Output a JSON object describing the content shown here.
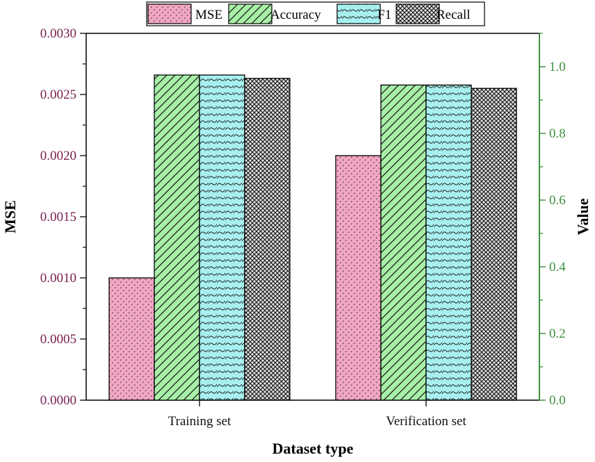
{
  "chart_data": {
    "type": "bar",
    "title": "",
    "xlabel": "Dataset type",
    "ylabel_left": "MSE",
    "ylabel_right": "Value",
    "categories": [
      "Training set",
      "Verification set"
    ],
    "ylim_left": [
      0,
      0.003
    ],
    "ylim_right": [
      0,
      1.1
    ],
    "left_ticks": [
      "0.0000",
      "0.0005",
      "0.0010",
      "0.0015",
      "0.0020",
      "0.0025",
      "0.0030"
    ],
    "right_ticks": [
      "0.0",
      "0.2",
      "0.4",
      "0.6",
      "0.8",
      "1.0"
    ],
    "legend_position": "top",
    "series": [
      {
        "name": "MSE",
        "axis": "left",
        "values": [
          0.001,
          0.002
        ],
        "color": "#f2a6c4",
        "pattern": "dots"
      },
      {
        "name": "Accuracy",
        "axis": "right",
        "values": [
          0.975,
          0.945
        ],
        "color": "#a8f0a8",
        "pattern": "diagonal"
      },
      {
        "name": "F1",
        "axis": "right",
        "values": [
          0.975,
          0.945
        ],
        "color": "#a8f0f0",
        "pattern": "waves"
      },
      {
        "name": "Recall",
        "axis": "right",
        "values": [
          0.965,
          0.935
        ],
        "color": "#d8d8d8",
        "pattern": "crosshatch"
      }
    ],
    "left_axis_color": "#7a2050",
    "right_axis_color": "#3f8f3f"
  }
}
